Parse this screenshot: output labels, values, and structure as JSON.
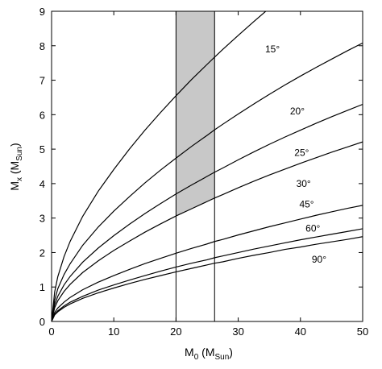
{
  "chart_data": {
    "type": "line",
    "xlabel": {
      "main": "M",
      "sub": "0",
      "unit_open": " (M",
      "unit_sub": "Sun",
      "unit_close": ")"
    },
    "ylabel": {
      "main": "M",
      "sub": "x",
      "unit_open": " (M",
      "unit_sub": "Sun",
      "unit_close": ")"
    },
    "xlim": [
      0,
      50
    ],
    "ylim": [
      0,
      9
    ],
    "x_ticks": [
      0,
      10,
      20,
      30,
      40,
      50
    ],
    "y_ticks": [
      0,
      1,
      2,
      3,
      4,
      5,
      6,
      7,
      8,
      9
    ],
    "shaded_band": {
      "x_range": [
        20,
        26.2
      ],
      "lower_series": "30°",
      "upper_series": "y_max"
    },
    "vertical_lines": [
      20,
      26.2
    ],
    "x": [
      0,
      0.5,
      1,
      2,
      3,
      5,
      7.5,
      10,
      12.5,
      15,
      17.5,
      20,
      22.5,
      25,
      26.2,
      27.5,
      30,
      32.5,
      35,
      37.5,
      40,
      42.5,
      45,
      47.5,
      50
    ],
    "series": [
      {
        "name": "15°",
        "y": [
          0,
          0.86,
          1.3,
          1.88,
          2.33,
          3.05,
          3.78,
          4.41,
          5.0,
          5.55,
          6.06,
          6.55,
          7.02,
          7.46,
          7.67,
          7.89,
          8.3,
          8.7,
          9.09,
          null,
          null,
          null,
          null,
          null,
          null
        ]
      },
      {
        "name": "20°",
        "y": [
          0,
          0.62,
          0.95,
          1.36,
          1.68,
          2.21,
          2.74,
          3.2,
          3.62,
          4.02,
          4.39,
          4.74,
          5.08,
          5.4,
          5.56,
          5.72,
          6.02,
          6.31,
          6.59,
          6.86,
          7.12,
          7.37,
          7.61,
          7.85,
          8.08
        ]
      },
      {
        "name": "25°",
        "y": [
          0,
          0.49,
          0.73,
          1.06,
          1.31,
          1.72,
          2.13,
          2.49,
          2.82,
          3.13,
          3.42,
          3.7,
          3.96,
          4.21,
          4.33,
          4.45,
          4.69,
          4.92,
          5.14,
          5.35,
          5.55,
          5.75,
          5.94,
          6.12,
          6.3
        ]
      },
      {
        "name": "30°",
        "y": [
          0,
          0.4,
          0.6,
          0.87,
          1.08,
          1.42,
          1.76,
          2.06,
          2.33,
          2.59,
          2.83,
          3.06,
          3.27,
          3.48,
          3.58,
          3.68,
          3.88,
          4.07,
          4.25,
          4.42,
          4.59,
          4.75,
          4.91,
          5.06,
          5.21
        ]
      },
      {
        "name": "45°",
        "y": [
          0,
          0.26,
          0.39,
          0.56,
          0.7,
          0.92,
          1.14,
          1.33,
          1.51,
          1.68,
          1.83,
          1.98,
          2.12,
          2.25,
          2.32,
          2.38,
          2.51,
          2.63,
          2.75,
          2.86,
          2.97,
          3.08,
          3.18,
          3.28,
          3.37
        ]
      },
      {
        "name": "60°",
        "y": [
          0,
          0.21,
          0.31,
          0.45,
          0.56,
          0.73,
          0.91,
          1.06,
          1.2,
          1.33,
          1.46,
          1.58,
          1.69,
          1.79,
          1.85,
          1.9,
          2.0,
          2.1,
          2.19,
          2.28,
          2.37,
          2.45,
          2.53,
          2.61,
          2.69
        ]
      },
      {
        "name": "90°",
        "y": [
          0,
          0.19,
          0.28,
          0.41,
          0.51,
          0.67,
          0.83,
          0.97,
          1.1,
          1.22,
          1.33,
          1.44,
          1.54,
          1.64,
          1.69,
          1.73,
          1.83,
          1.92,
          2.0,
          2.09,
          2.16,
          2.24,
          2.31,
          2.38,
          2.46
        ]
      }
    ],
    "annotations": [
      {
        "text": "15°",
        "x": 35.5,
        "y": 7.9
      },
      {
        "text": "20°",
        "x": 39.5,
        "y": 6.1
      },
      {
        "text": "25°",
        "x": 40.2,
        "y": 4.9
      },
      {
        "text": "30°",
        "x": 40.5,
        "y": 4.0
      },
      {
        "text": "45°",
        "x": 41.0,
        "y": 3.4
      },
      {
        "text": "60°",
        "x": 42.0,
        "y": 2.7
      },
      {
        "text": "90°",
        "x": 43.0,
        "y": 1.8
      }
    ],
    "colors": {
      "band": "#c8c8c8",
      "line": "#000000"
    }
  }
}
